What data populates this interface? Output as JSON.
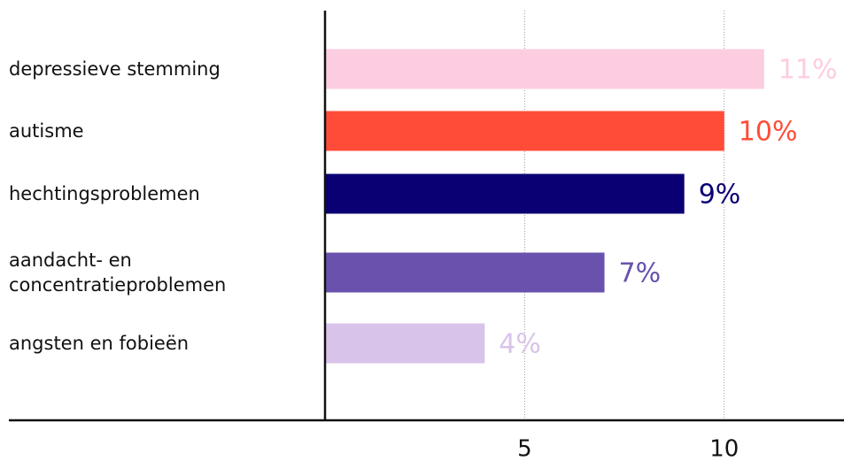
{
  "chart_data": {
    "type": "barh",
    "categories": [
      "depressieve stemming",
      "autisme",
      "hechtingsproblemen",
      "aandacht- en concentratieproblemen",
      "angsten en fobieën"
    ],
    "values": [
      11,
      10,
      9,
      7,
      4
    ],
    "value_labels": [
      "11%",
      "10%",
      "9%",
      "7%",
      "4%"
    ],
    "colors": [
      "#fccde1",
      "#ff4c38",
      "#0b0073",
      "#6852ad",
      "#d8c3ea"
    ],
    "xlim": [
      0,
      13
    ],
    "xticks": [
      5,
      10
    ],
    "grid": true
  }
}
